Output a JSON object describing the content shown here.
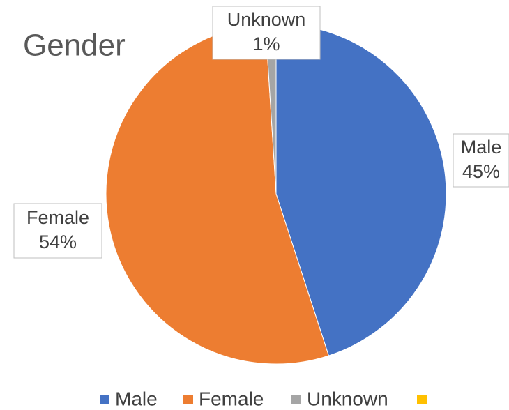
{
  "chart_data": {
    "type": "pie",
    "title": "Gender",
    "categories": [
      "Male",
      "Female",
      "Unknown",
      null
    ],
    "values": [
      45,
      54,
      1,
      0
    ],
    "value_labels": [
      "45%",
      "54%",
      "1%",
      null
    ],
    "colors": [
      "#4472c4",
      "#ed7d31",
      "#a5a5a5",
      "#ffc000"
    ],
    "legend": "bottom"
  }
}
